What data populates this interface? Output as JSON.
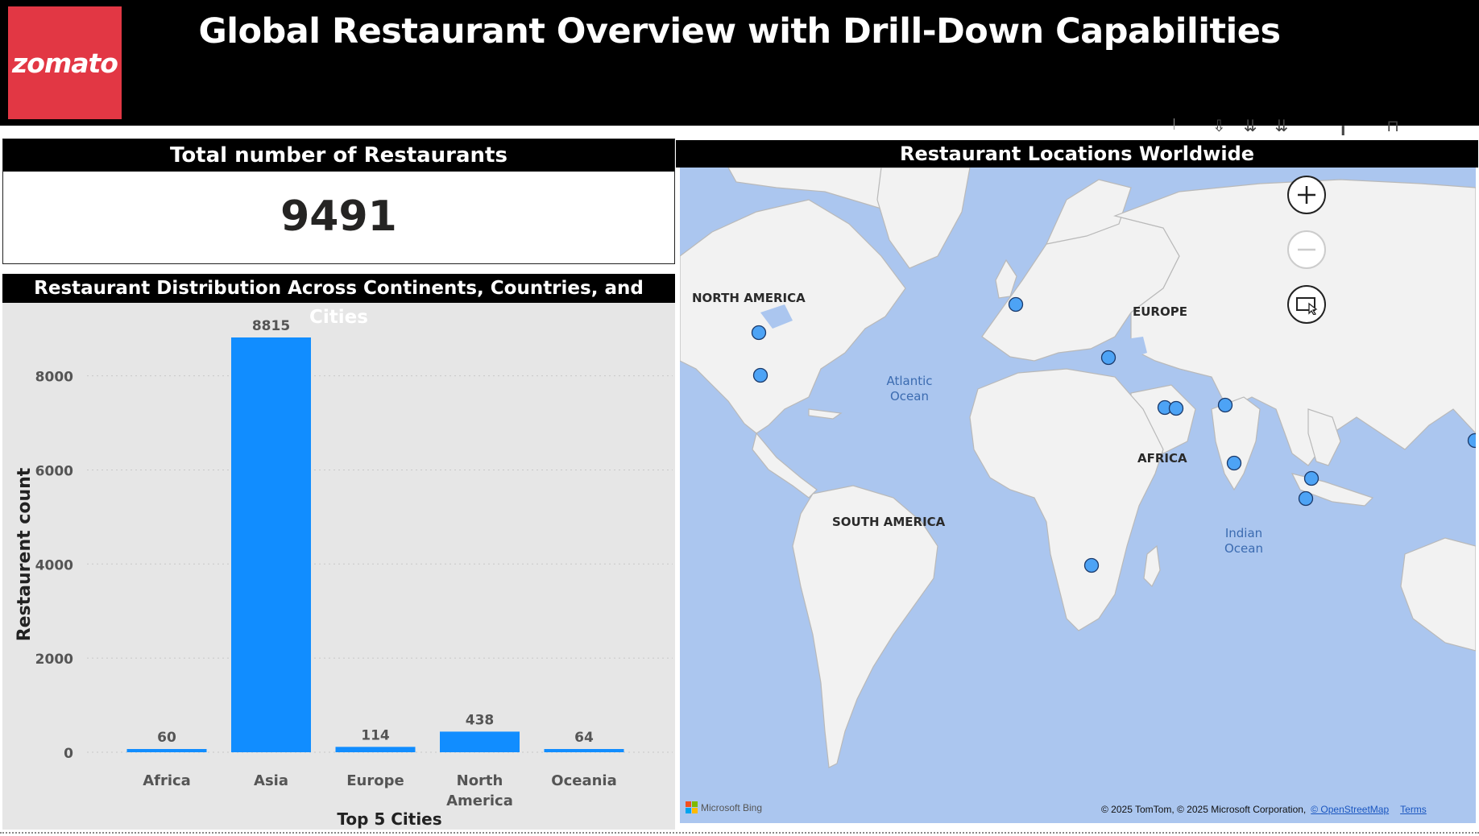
{
  "header": {
    "logo_text": "zomato",
    "title": "Global Restaurant Overview with Drill-Down Capabilities"
  },
  "colors": {
    "brand_red": "#e23744",
    "bar_blue": "#118dff",
    "header_black": "#000000",
    "map_water": "#abc6ef",
    "map_land": "#f2f2f2",
    "marker": "#4da3f5"
  },
  "kpi": {
    "title": "Total number of Restaurants",
    "value": "9491"
  },
  "bar_chart": {
    "title": "Restaurant Distribution Across Continents, Countries, and Cities"
  },
  "chart_data": {
    "type": "bar",
    "title": "Restaurant Distribution Across Continents, Countries, and Cities",
    "categories": [
      "Africa",
      "Asia",
      "Europe",
      "North America",
      "Oceania"
    ],
    "values": [
      60,
      8815,
      114,
      438,
      64
    ],
    "xlabel": "Top 5 Cities",
    "ylabel": "Restaurent count",
    "yticks": [
      "0",
      "2000",
      "4000",
      "6000",
      "8000"
    ],
    "ylim": [
      0,
      8815
    ],
    "grid": true,
    "data_labels": true
  },
  "map": {
    "title": "Restaurant Locations Worldwide",
    "labels": {
      "north_america": "NORTH AMERICA",
      "south_america": "SOUTH AMERICA",
      "europe": "EUROPE",
      "africa": "AFRICA",
      "atlantic_line1": "Atlantic",
      "atlantic_line2": "Ocean",
      "indian_line1": "Indian",
      "indian_line2": "Ocean"
    },
    "controls": {
      "zoom_in": "zoom-in-icon",
      "zoom_out": "zoom-out-icon",
      "select": "rect-select-icon"
    },
    "attribution": "© 2025 TomTom, © 2025 Microsoft Corporation,",
    "attribution_link": "© OpenStreetMap",
    "terms": "Terms",
    "bing": "Microsoft Bing"
  }
}
